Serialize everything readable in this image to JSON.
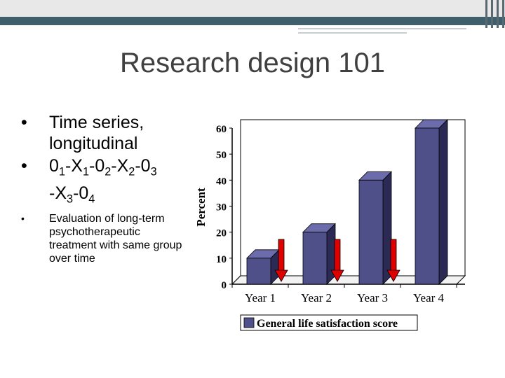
{
  "slide": {
    "title": "Research design 101"
  },
  "bullets": [
    {
      "lines": [
        "Time series,",
        "longitudinal"
      ]
    },
    {
      "formula": [
        {
          "t": "0"
        },
        {
          "s": "1"
        },
        {
          "t": "-X"
        },
        {
          "s": "1"
        },
        {
          "t": "-0"
        },
        {
          "s": "2"
        },
        {
          "t": "-X"
        },
        {
          "s": "2"
        },
        {
          "t": "-0"
        },
        {
          "s": "3"
        },
        {
          "br": true
        },
        {
          "t": "-X"
        },
        {
          "s": "3"
        },
        {
          "t": "-0"
        },
        {
          "s": "4"
        }
      ]
    },
    {
      "text": "Evaluation of long-term psychotherapeutic treatment with same group over time"
    }
  ],
  "chart_data": {
    "type": "bar",
    "categories": [
      "Year 1",
      "Year 2",
      "Year 3",
      "Year 4"
    ],
    "series": [
      {
        "name": "General life satisfaction score",
        "values": [
          10,
          20,
          40,
          60
        ]
      }
    ],
    "ylabel": "Percent",
    "xlabel": "",
    "ylim": [
      0,
      60
    ],
    "yticks": [
      0,
      10,
      20,
      30,
      40,
      50,
      60
    ],
    "grid": false,
    "legend": "bottom",
    "style": "3d",
    "bar_color": "#4f4f8a",
    "bar_side_color": "#2a2a55",
    "arrow_color": "#e00000",
    "annotations": "red downward arrows between years marking interventions"
  }
}
